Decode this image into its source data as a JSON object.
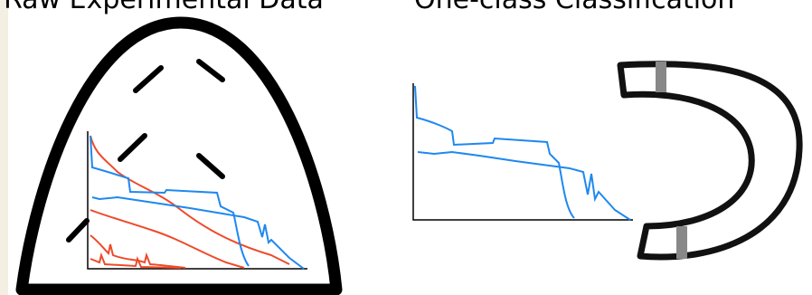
{
  "titles": {
    "left": "Raw Experimental Data",
    "right": "One-class Classification"
  }
}
